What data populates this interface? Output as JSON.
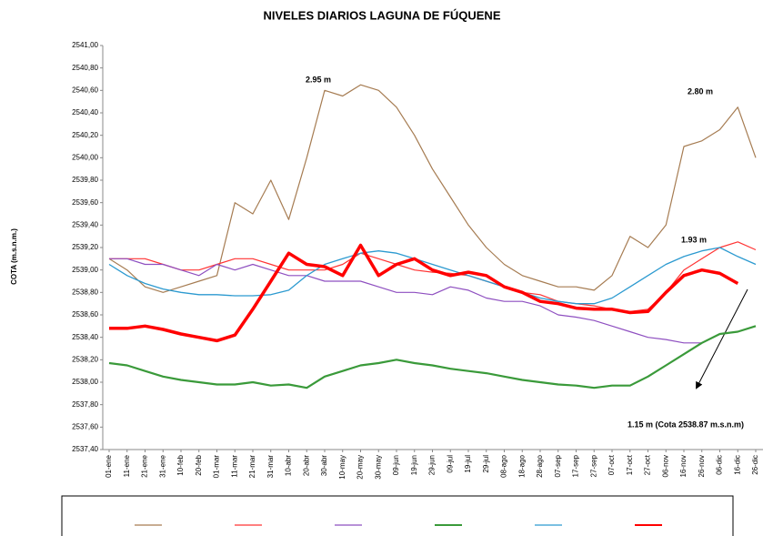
{
  "chart_data": {
    "type": "line",
    "title": "NIVELES DIARIOS LAGUNA DE FÚQUENE",
    "y_label": "COTA (m.s.n.m.)",
    "categories": [
      "01-ene",
      "11-ene",
      "21-ene",
      "31-ene",
      "10-feb",
      "20-feb",
      "01-mar",
      "11-mar",
      "21-mar",
      "31-mar",
      "10-abr",
      "20-abr",
      "30-abr",
      "10-may",
      "20-may",
      "30-may",
      "09-jun",
      "19-jun",
      "29-jun",
      "09-jul",
      "19-jul",
      "29-jul",
      "08-ago",
      "18-ago",
      "28-ago",
      "07-sep",
      "17-sep",
      "27-sep",
      "07-oct",
      "17-oct",
      "27-oct",
      "06-nov",
      "16-nov",
      "26-nov",
      "06-dic",
      "16-dic",
      "26-dic"
    ],
    "ylim": [
      2537.4,
      2541.0
    ],
    "yticks": [
      {
        "value": 2537.4,
        "label": "2537,40"
      },
      {
        "value": 2537.6,
        "label": "2537,60"
      },
      {
        "value": 2537.8,
        "label": "2537,80"
      },
      {
        "value": 2538.0,
        "label": "2538,00"
      },
      {
        "value": 2538.2,
        "label": "2538,20"
      },
      {
        "value": 2538.4,
        "label": "2538,40"
      },
      {
        "value": 2538.6,
        "label": "2538,60"
      },
      {
        "value": 2538.8,
        "label": "2538,80"
      },
      {
        "value": 2539.0,
        "label": "2539,00"
      },
      {
        "value": 2539.2,
        "label": "2539,20"
      },
      {
        "value": 2539.4,
        "label": "2539,40"
      },
      {
        "value": 2539.6,
        "label": "2539,60"
      },
      {
        "value": 2539.8,
        "label": "2539,80"
      },
      {
        "value": 2540.0,
        "label": "2540,00"
      },
      {
        "value": 2540.2,
        "label": "2540,20"
      },
      {
        "value": 2540.4,
        "label": "2540,40"
      },
      {
        "value": 2540.6,
        "label": "2540,60"
      },
      {
        "value": 2540.8,
        "label": "2540,80"
      },
      {
        "value": 2541.0,
        "label": "2541,00"
      }
    ],
    "grid": false,
    "series": [
      {
        "color": "#a67c52",
        "width": 1.2,
        "values": [
          2539.1,
          2539.0,
          2538.85,
          2538.8,
          2538.85,
          2538.9,
          2538.95,
          2539.6,
          2539.5,
          2539.8,
          2539.45,
          2540.0,
          2540.6,
          2540.55,
          2540.65,
          2540.6,
          2540.45,
          2540.2,
          2539.9,
          2539.65,
          2539.4,
          2539.2,
          2539.05,
          2538.95,
          2538.9,
          2538.85,
          2538.85,
          2538.82,
          2538.95,
          2539.3,
          2539.2,
          2539.4,
          2540.1,
          2540.15,
          2540.25,
          2540.45,
          2540.0
        ]
      },
      {
        "color": "#ff3333",
        "width": 1.2,
        "values": [
          2539.1,
          2539.1,
          2539.1,
          2539.05,
          2539.0,
          2539.0,
          2539.05,
          2539.1,
          2539.1,
          2539.05,
          2539.0,
          2539.0,
          2539.0,
          2539.05,
          2539.15,
          2539.1,
          2539.05,
          2539.0,
          2538.98,
          2538.97,
          2538.95,
          2538.9,
          2538.85,
          2538.8,
          2538.78,
          2538.72,
          2538.7,
          2538.68,
          2538.65,
          2538.63,
          2538.65,
          2538.8,
          2539.0,
          2539.1,
          2539.2,
          2539.25,
          2539.18
        ]
      },
      {
        "color": "#8e4fc0",
        "width": 1.2,
        "values": [
          2539.1,
          2539.1,
          2539.05,
          2539.05,
          2539.0,
          2538.95,
          2539.05,
          2539.0,
          2539.05,
          2539.0,
          2538.95,
          2538.95,
          2538.9,
          2538.9,
          2538.9,
          2538.85,
          2538.8,
          2538.8,
          2538.78,
          2538.85,
          2538.82,
          2538.75,
          2538.72,
          2538.72,
          2538.68,
          2538.6,
          2538.58,
          2538.55,
          2538.5,
          2538.45,
          2538.4,
          2538.38,
          2538.35,
          2538.35,
          null,
          null,
          null
        ]
      },
      {
        "color": "#3a9a3a",
        "width": 2.2,
        "values": [
          2538.17,
          2538.15,
          2538.1,
          2538.05,
          2538.02,
          2538.0,
          2537.98,
          2537.98,
          2538.0,
          2537.97,
          2537.98,
          2537.95,
          2538.05,
          2538.1,
          2538.15,
          2538.17,
          2538.2,
          2538.17,
          2538.15,
          2538.12,
          2538.1,
          2538.08,
          2538.05,
          2538.02,
          2538.0,
          2537.98,
          2537.97,
          2537.95,
          2537.97,
          2537.97,
          2538.05,
          2538.15,
          2538.25,
          2538.35,
          2538.43,
          2538.45,
          2538.5
        ]
      },
      {
        "color": "#2c9ad0",
        "width": 1.3,
        "values": [
          2539.05,
          2538.95,
          2538.88,
          2538.83,
          2538.8,
          2538.78,
          2538.78,
          2538.77,
          2538.77,
          2538.78,
          2538.82,
          2538.95,
          2539.05,
          2539.1,
          2539.15,
          2539.17,
          2539.15,
          2539.1,
          2539.05,
          2539.0,
          2538.95,
          2538.9,
          2538.85,
          2538.8,
          2538.75,
          2538.72,
          2538.7,
          2538.7,
          2538.75,
          2538.85,
          2538.95,
          2539.05,
          2539.12,
          2539.17,
          2539.2,
          2539.12,
          2539.05
        ]
      },
      {
        "color": "#ff0000",
        "width": 3.5,
        "values": [
          2538.48,
          2538.48,
          2538.5,
          2538.47,
          2538.43,
          2538.4,
          2538.37,
          2538.42,
          2538.65,
          2538.9,
          2539.15,
          2539.05,
          2539.03,
          2538.95,
          2539.22,
          2538.95,
          2539.05,
          2539.1,
          2539.0,
          2538.95,
          2538.98,
          2538.95,
          2538.85,
          2538.8,
          2538.72,
          2538.7,
          2538.66,
          2538.65,
          2538.65,
          2538.62,
          2538.63,
          2538.8,
          2538.95,
          2539.0,
          2538.97,
          2538.88,
          null
        ]
      }
    ],
    "annotations": [
      "2.95 m",
      "2.80 m",
      "1.93 m",
      "1.15 m (Cota 2538.87 m.s.n.m)"
    ]
  }
}
